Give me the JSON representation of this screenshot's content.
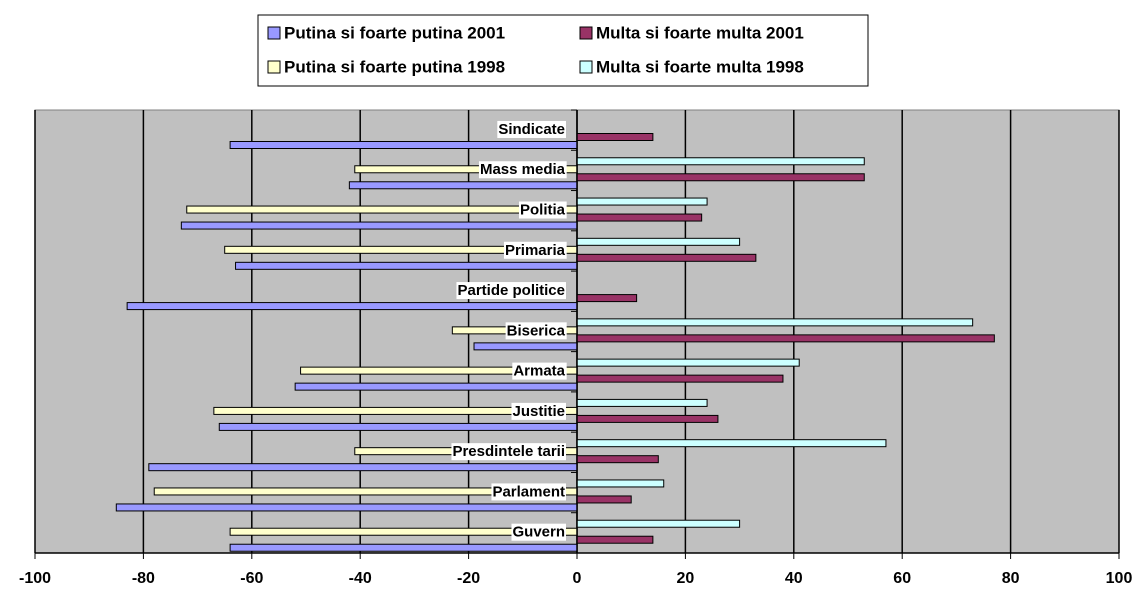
{
  "chart_data": {
    "type": "hbar",
    "categories": [
      "Sindicate",
      "Mass media",
      "Politia",
      "Primaria",
      "Partide politice",
      "Biserica",
      "Armata",
      "Justitie",
      "Presdintele tarii",
      "Parlament",
      "Guvern"
    ],
    "series": [
      {
        "name": "Putina si foarte putina 2001",
        "color": "#9999ff",
        "values": [
          -64,
          -42,
          -73,
          -63,
          -83,
          -19,
          -52,
          -66,
          -79,
          -85,
          -64
        ]
      },
      {
        "name": "Multa si foarte multa 2001",
        "color": "#993366",
        "values": [
          14,
          53,
          23,
          33,
          11,
          77,
          38,
          26,
          15,
          10,
          14
        ]
      },
      {
        "name": "Putina si foarte putina 1998",
        "color": "#ffffcc",
        "values": [
          null,
          -41,
          -72,
          -65,
          null,
          -23,
          -51,
          -67,
          -41,
          -78,
          -64
        ]
      },
      {
        "name": "Multa si foarte multa 1998",
        "color": "#ccffff",
        "values": [
          null,
          53,
          24,
          30,
          null,
          73,
          41,
          24,
          57,
          16,
          30
        ]
      }
    ],
    "xlim": [
      -100,
      100
    ],
    "xticks": [
      -100,
      -80,
      -60,
      -40,
      -20,
      0,
      20,
      40,
      60,
      80,
      100
    ],
    "grid": true,
    "plot_background": "#c0c0c0"
  }
}
